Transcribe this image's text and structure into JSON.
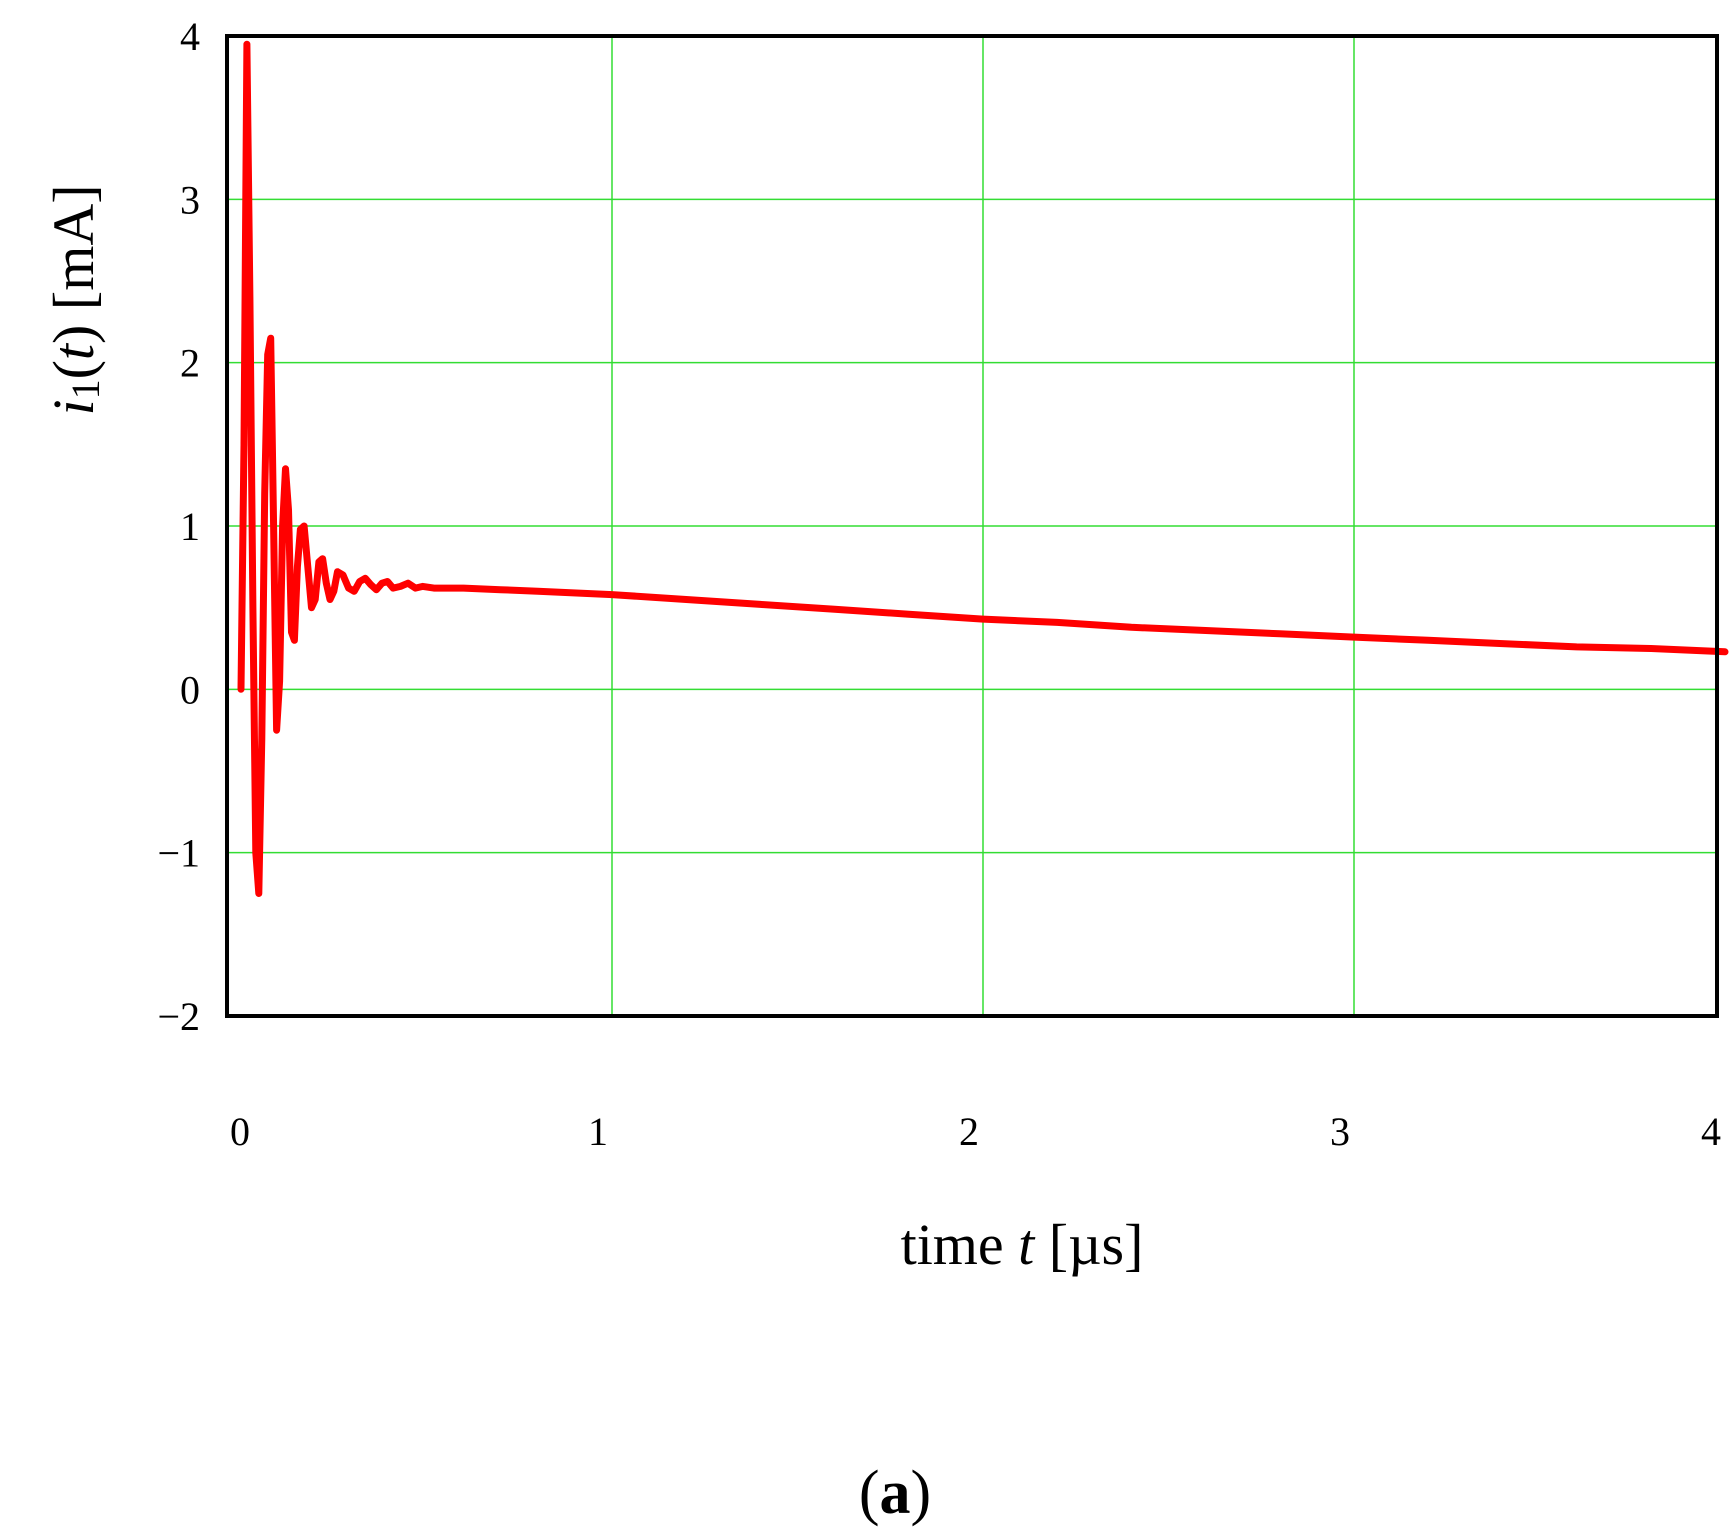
{
  "chart_data": {
    "type": "line",
    "xlabel": {
      "prefix": "time ",
      "variable": "t",
      "unit": " [µs]"
    },
    "ylabel": {
      "symbol": "i",
      "subscript": "1",
      "open": "(",
      "variable": "t",
      "close": ")",
      "unit": " [mA]"
    },
    "xlim": [
      0,
      4
    ],
    "ylim": [
      -2,
      4
    ],
    "x_ticks": [
      "0",
      "1",
      "2",
      "3",
      "4"
    ],
    "y_ticks": [
      "4",
      "3",
      "2",
      "1",
      "0",
      "−1",
      "−2"
    ],
    "grid": true,
    "colors": {
      "series": "#ff0000",
      "grid": "#33dd33",
      "frame": "#000000"
    },
    "series": [
      {
        "x": [
          0,
          0.008,
          0.016,
          0.024,
          0.032,
          0.04,
          0.048,
          0.056,
          0.064,
          0.072,
          0.08,
          0.088,
          0.096,
          0.104,
          0.112,
          0.12,
          0.128,
          0.136,
          0.144,
          0.152,
          0.16,
          0.17,
          0.18,
          0.19,
          0.2,
          0.21,
          0.22,
          0.23,
          0.24,
          0.25,
          0.26,
          0.275,
          0.29,
          0.305,
          0.32,
          0.335,
          0.35,
          0.365,
          0.38,
          0.395,
          0.41,
          0.43,
          0.45,
          0.47,
          0.49,
          0.52,
          0.55,
          0.6,
          0.7,
          0.8,
          1.0,
          1.2,
          1.4,
          1.6,
          1.8,
          2.0,
          2.2,
          2.4,
          2.6,
          2.8,
          3.0,
          3.2,
          3.4,
          3.6,
          3.8,
          4.0
        ],
        "y": [
          0.0,
          1.5,
          3.95,
          2.4,
          0.5,
          -1.0,
          -1.25,
          -0.3,
          1.2,
          2.05,
          2.15,
          1.0,
          -0.25,
          0.05,
          1.0,
          1.35,
          1.1,
          0.35,
          0.3,
          0.75,
          0.98,
          1.0,
          0.75,
          0.5,
          0.55,
          0.78,
          0.8,
          0.65,
          0.55,
          0.6,
          0.72,
          0.7,
          0.62,
          0.6,
          0.66,
          0.68,
          0.64,
          0.61,
          0.65,
          0.66,
          0.62,
          0.63,
          0.65,
          0.62,
          0.63,
          0.62,
          0.62,
          0.62,
          0.61,
          0.6,
          0.58,
          0.55,
          0.52,
          0.49,
          0.46,
          0.43,
          0.41,
          0.38,
          0.36,
          0.34,
          0.32,
          0.3,
          0.28,
          0.26,
          0.25,
          0.23
        ]
      }
    ]
  },
  "panel_label": {
    "open": "(",
    "letter": "a",
    "close": ")"
  }
}
